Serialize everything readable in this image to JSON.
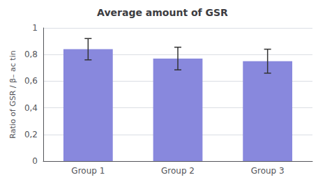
{
  "chart_data": {
    "type": "bar",
    "title": "Average amount of GSR",
    "ylabel": "Ratio of GSR / β– ac tin",
    "categories": [
      "Group 1",
      "Group 2",
      "Group 3"
    ],
    "values": [
      0.84,
      0.77,
      0.75
    ],
    "errors": [
      0.08,
      0.085,
      0.09
    ],
    "color": "#8888dd",
    "ylim": [
      0,
      1.0
    ],
    "yticks": [
      0,
      {
        "value": 0.2,
        "label": "0,2"
      },
      {
        "value": 0.4,
        "label": "0,4"
      },
      {
        "value": 0.6,
        "label": "0,6"
      },
      {
        "value": 0.8,
        "label": "0,8"
      },
      1
    ],
    "grid": true
  }
}
